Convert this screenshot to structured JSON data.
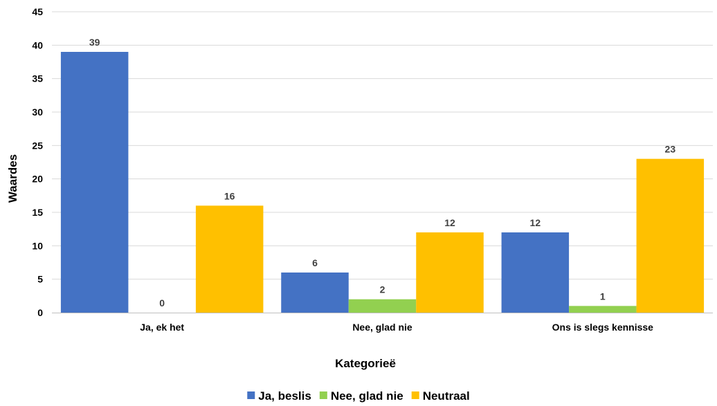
{
  "chart_data": {
    "type": "bar",
    "title": "",
    "xlabel": "Kategorieë",
    "ylabel": "Waardes",
    "categories": [
      "Ja, ek het",
      "Nee, glad nie",
      "Ons is slegs kennisse"
    ],
    "series": [
      {
        "name": "Ja, beslis",
        "values": [
          39,
          6,
          12
        ],
        "color": "#4472C4"
      },
      {
        "name": "Nee, glad nie",
        "values": [
          0,
          2,
          1
        ],
        "color": "#92D050"
      },
      {
        "name": "Neutraal",
        "values": [
          16,
          12,
          23
        ],
        "color": "#FFC000"
      }
    ],
    "ylim": [
      0,
      45
    ],
    "yticks": [
      0,
      5,
      10,
      15,
      20,
      25,
      30,
      35,
      40,
      45
    ],
    "grid": true,
    "data_labels": true,
    "legend_position": "bottom"
  }
}
